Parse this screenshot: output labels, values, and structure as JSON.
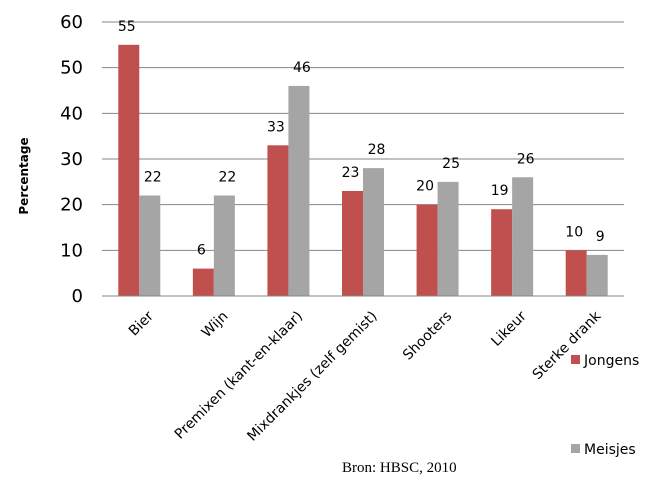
{
  "chart_data": {
    "type": "bar",
    "ylabel": "Percentage",
    "ylim": [
      0,
      60
    ],
    "yticks": [
      0,
      10,
      20,
      30,
      40,
      50,
      60
    ],
    "categories": [
      "Bier",
      "Wijn",
      "Premixen (kant-en-klaar)",
      "Mixdrankjes (zelf gemist)",
      "Shooters",
      "Likeur",
      "Sterke drank"
    ],
    "series": [
      {
        "name": "Jongens",
        "color": "#c0504d",
        "values": [
          55,
          6,
          33,
          23,
          20,
          19,
          10
        ],
        "labels": [
          "55",
          "6",
          "33",
          "23",
          "20",
          "19",
          "10"
        ]
      },
      {
        "name": "Meisjes",
        "color": "#a5a5a5",
        "values": [
          22,
          22,
          46,
          28,
          25,
          26,
          9
        ],
        "labels": [
          "22",
          "22",
          "46",
          "28",
          "25",
          "26",
          "9"
        ]
      }
    ],
    "grid": true,
    "legend": "right",
    "source_note": "Bron: HBSC, 2010"
  }
}
